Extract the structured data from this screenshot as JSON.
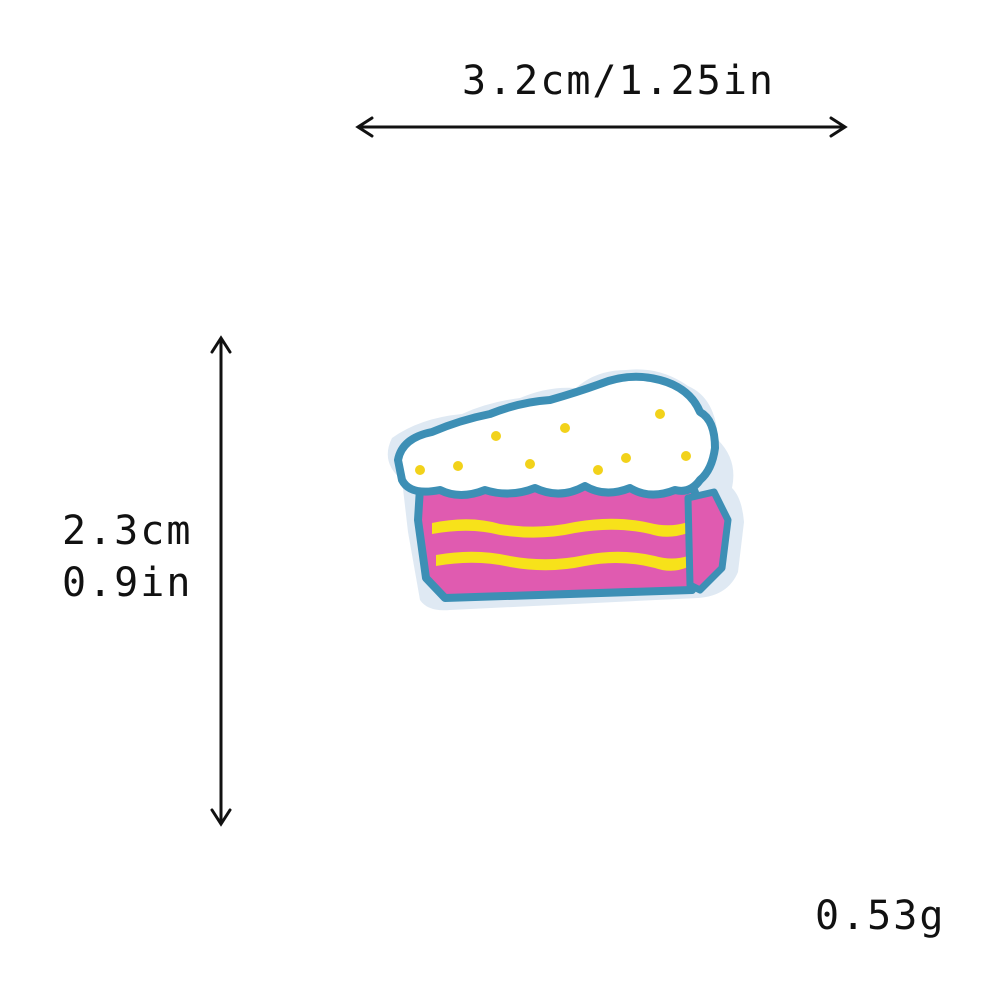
{
  "product": {
    "name_icon": "embroidered-cake-slice-patch",
    "colors": {
      "border": "#3d8fb5",
      "frosting": "#ffffff",
      "sprinkles": "#f2d21a",
      "layer_pink": "#e05bb0",
      "layer_yellow": "#f7e21a",
      "backing": "#dfe9f3"
    }
  },
  "dimensions": {
    "width_text": "3.2cm/1.25in",
    "height_cm": "2.3cm",
    "height_in": "0.9in",
    "weight": "0.53g"
  }
}
